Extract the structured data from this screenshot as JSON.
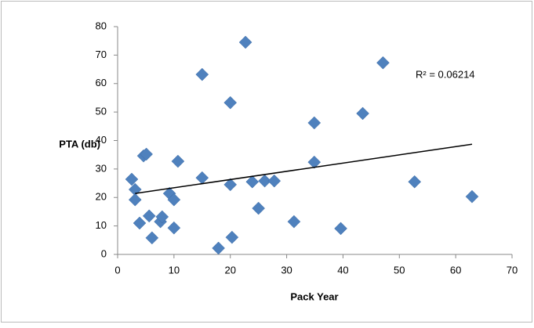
{
  "chart_data": {
    "type": "scatter",
    "x_label": "Pack Year",
    "y_label": "PTA (db)",
    "annotation": "R² = 0.06214",
    "color": "#4f81bd",
    "xlim": [
      0,
      70
    ],
    "xticks": [
      0,
      10,
      20,
      30,
      40,
      50,
      60,
      70
    ],
    "ylim": [
      0,
      80
    ],
    "yticks": [
      0,
      10,
      20,
      30,
      40,
      50,
      60,
      70,
      80
    ],
    "x": [
      2.5,
      3.1,
      3.1,
      3.9,
      4.6,
      5.1,
      5.6,
      6.1,
      7.6,
      7.9,
      9.2,
      10,
      10,
      10.7,
      15,
      15,
      17.9,
      20,
      20,
      20.3,
      22.7,
      23.9,
      25,
      26.1,
      27.8,
      31.3,
      34.9,
      34.9,
      39.6,
      43.5,
      47.1,
      52.7,
      62.9
    ],
    "values": [
      26.4,
      22.8,
      19.2,
      11,
      34.6,
      35.2,
      13.5,
      5.8,
      11.5,
      13.2,
      21.4,
      19.2,
      9.3,
      32.7,
      26.9,
      63.2,
      2.2,
      53.3,
      24.5,
      6,
      74.5,
      25.5,
      16.2,
      25.8,
      25.8,
      11.5,
      46.2,
      32.4,
      9.1,
      49.5,
      67.3,
      25.5,
      20.3
    ],
    "trendline": {
      "x": [
        3.1,
        62.9
      ],
      "y": [
        21.4,
        38.7
      ],
      "color": "#000000"
    }
  }
}
